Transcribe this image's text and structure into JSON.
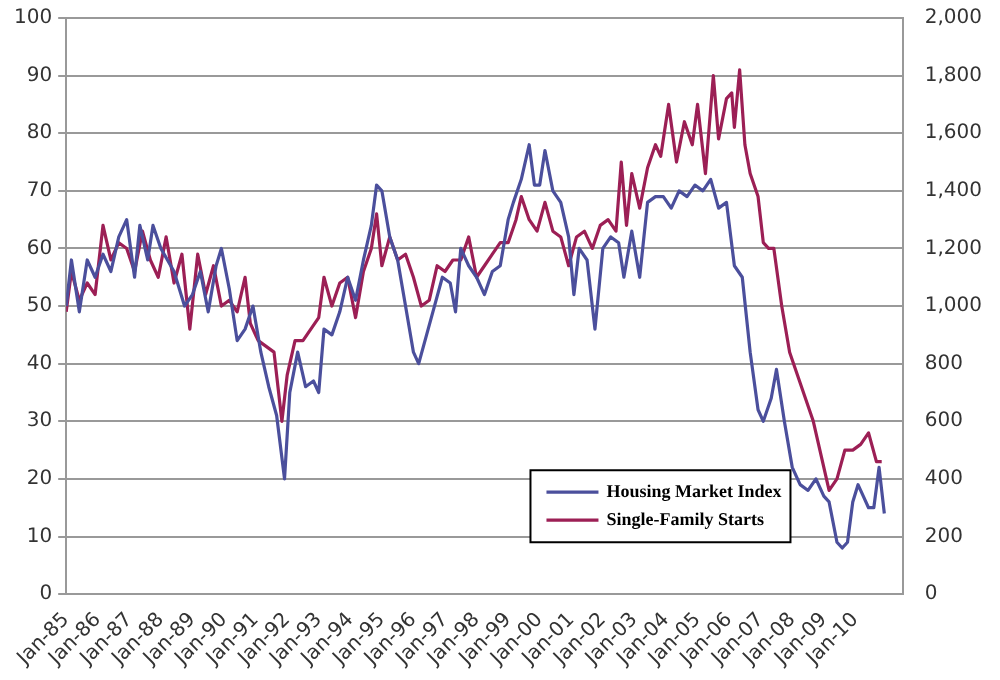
{
  "chart_data": {
    "type": "line",
    "x": [
      "1985-01",
      "1985-03",
      "1985-06",
      "1985-09",
      "1985-12",
      "1986-03",
      "1986-06",
      "1986-09",
      "1986-12",
      "1987-03",
      "1987-05",
      "1987-08",
      "1987-10",
      "1988-01",
      "1988-06",
      "1988-10",
      "1989-01",
      "1989-04",
      "1989-07",
      "1989-10",
      "1989-12",
      "1990-03",
      "1990-06",
      "1990-09",
      "1990-12",
      "1991-03",
      "1991-06",
      "1991-09",
      "1991-12",
      "1992-02",
      "1992-05",
      "1992-08",
      "1992-11",
      "1993-01",
      "1993-03",
      "1993-06",
      "1993-09",
      "1993-12",
      "1994-03",
      "1994-06",
      "1994-09",
      "1994-11",
      "1995-01",
      "1995-04",
      "1995-07",
      "1995-10",
      "1996-01",
      "1996-03",
      "1996-06",
      "1996-09",
      "1996-12",
      "1997-03",
      "1997-05",
      "1997-07",
      "1997-10",
      "1998-01",
      "1998-04",
      "1998-07",
      "1998-10",
      "1999-01",
      "1999-03",
      "1999-06",
      "1999-09",
      "1999-11",
      "2000-01",
      "2000-03",
      "2000-06",
      "2000-09",
      "2000-12",
      "2001-02",
      "2001-04",
      "2001-07",
      "2001-10",
      "2002-01",
      "2002-04",
      "2002-07",
      "2002-09",
      "2002-12",
      "2003-03",
      "2003-06",
      "2003-09",
      "2003-12",
      "2004-03",
      "2004-06",
      "2004-09",
      "2004-12",
      "2005-03",
      "2005-06",
      "2005-09",
      "2005-12",
      "2006-03",
      "2006-06",
      "2006-09",
      "2006-12",
      "2007-02",
      "2007-05",
      "2007-07",
      "2007-10",
      "2008-01",
      "2008-04",
      "2008-07",
      "2008-10",
      "2009-01",
      "2009-03",
      "2009-06",
      "2009-08",
      "2009-10",
      "2009-12",
      "2010-02",
      "2010-04",
      "2010-06",
      "2010-08",
      "2010-10",
      "2010-12"
    ],
    "series": [
      {
        "name": "Housing Market Index",
        "color": "#4b4f9c",
        "values": [
          50,
          58,
          49,
          58,
          55,
          59,
          56,
          62,
          65,
          55,
          64,
          58,
          64,
          60,
          56,
          50,
          52,
          56,
          49,
          57,
          60,
          53,
          44,
          46,
          50,
          42,
          36,
          31,
          20,
          35,
          42,
          36,
          37,
          35,
          46,
          45,
          49,
          55,
          51,
          58,
          64,
          71,
          70,
          62,
          58,
          50,
          42,
          40,
          45,
          50,
          55,
          54,
          49,
          60,
          57,
          55,
          52,
          56,
          57,
          65,
          68,
          72,
          78,
          71,
          71,
          77,
          70,
          68,
          62,
          52,
          60,
          58,
          46,
          60,
          62,
          61,
          55,
          63,
          55,
          68,
          69,
          69,
          67,
          70,
          69,
          71,
          70,
          72,
          67,
          68,
          57,
          55,
          42,
          32,
          30,
          34,
          39,
          30,
          22,
          19,
          18,
          20,
          17,
          16,
          9,
          8,
          9,
          16,
          19,
          17,
          15,
          15,
          22,
          14
        ]
      },
      {
        "name": "Single-Family Starts",
        "color": "#9c1f55",
        "axis": "y2",
        "x": [
          "1985-01",
          "1985-03",
          "1985-06",
          "1985-09",
          "1985-12",
          "1986-03",
          "1986-06",
          "1986-09",
          "1986-12",
          "1987-03",
          "1987-06",
          "1987-09",
          "1987-12",
          "1988-03",
          "1988-06",
          "1988-09",
          "1988-12",
          "1989-03",
          "1989-06",
          "1989-09",
          "1989-12",
          "1990-03",
          "1990-06",
          "1990-09",
          "1990-11",
          "1991-02",
          "1991-05",
          "1991-08",
          "1991-11",
          "1992-01",
          "1992-04",
          "1992-07",
          "1992-10",
          "1993-01",
          "1993-03",
          "1993-06",
          "1993-09",
          "1993-12",
          "1994-03",
          "1994-06",
          "1994-09",
          "1994-11",
          "1995-01",
          "1995-04",
          "1995-07",
          "1995-10",
          "1996-01",
          "1996-04",
          "1996-07",
          "1996-10",
          "1997-01",
          "1997-04",
          "1997-07",
          "1997-10",
          "1998-01",
          "1998-04",
          "1998-07",
          "1998-10",
          "1999-01",
          "1999-04",
          "1999-06",
          "1999-09",
          "1999-12",
          "2000-03",
          "2000-06",
          "2000-09",
          "2000-12",
          "2001-03",
          "2001-06",
          "2001-09",
          "2001-12",
          "2002-03",
          "2002-06",
          "2002-08",
          "2002-10",
          "2002-12",
          "2003-03",
          "2003-06",
          "2003-09",
          "2003-11",
          "2004-02",
          "2004-05",
          "2004-08",
          "2004-11",
          "2005-01",
          "2005-04",
          "2005-07",
          "2005-09",
          "2005-12",
          "2006-02",
          "2006-03",
          "2006-05",
          "2006-07",
          "2006-09",
          "2006-12",
          "2007-02",
          "2007-04",
          "2007-06",
          "2007-09",
          "2007-12",
          "2008-03",
          "2008-06",
          "2008-09",
          "2008-12",
          "2009-03",
          "2009-06",
          "2009-09",
          "2009-12",
          "2010-03",
          "2010-06",
          "2010-09",
          "2010-11"
        ],
        "values": [
          980,
          1120,
          1020,
          1080,
          1040,
          1280,
          1160,
          1220,
          1200,
          1120,
          1260,
          1160,
          1100,
          1240,
          1080,
          1180,
          920,
          1180,
          1040,
          1140,
          1000,
          1020,
          980,
          1100,
          940,
          880,
          860,
          840,
          600,
          760,
          880,
          880,
          920,
          960,
          1100,
          1000,
          1080,
          1100,
          960,
          1120,
          1200,
          1320,
          1140,
          1240,
          1160,
          1180,
          1100,
          1000,
          1020,
          1140,
          1120,
          1160,
          1160,
          1240,
          1100,
          1140,
          1180,
          1220,
          1220,
          1300,
          1380,
          1300,
          1260,
          1360,
          1260,
          1240,
          1140,
          1240,
          1260,
          1200,
          1280,
          1300,
          1260,
          1500,
          1280,
          1460,
          1340,
          1480,
          1560,
          1520,
          1700,
          1500,
          1640,
          1560,
          1700,
          1460,
          1800,
          1580,
          1720,
          1740,
          1620,
          1820,
          1560,
          1460,
          1380,
          1220,
          1200,
          1200,
          1000,
          840,
          760,
          680,
          600,
          480,
          360,
          400,
          500,
          500,
          520,
          560,
          460,
          460
        ]
      }
    ],
    "xlim": [
      "1985-01",
      "2011-07"
    ],
    "xticks": [
      {
        "value": "1985-01",
        "label": "Jan-85"
      },
      {
        "value": "1986-01",
        "label": "Jan-86"
      },
      {
        "value": "1987-01",
        "label": "Jan-87"
      },
      {
        "value": "1988-01",
        "label": "Jan-88"
      },
      {
        "value": "1989-01",
        "label": "Jan-89"
      },
      {
        "value": "1990-01",
        "label": "Jan-90"
      },
      {
        "value": "1991-01",
        "label": "Jan-91"
      },
      {
        "value": "1992-01",
        "label": "Jan-92"
      },
      {
        "value": "1993-01",
        "label": "Jan-93"
      },
      {
        "value": "1994-01",
        "label": "Jan-94"
      },
      {
        "value": "1995-01",
        "label": "Jan-95"
      },
      {
        "value": "1996-01",
        "label": "Jan-96"
      },
      {
        "value": "1997-01",
        "label": "Jan-97"
      },
      {
        "value": "1998-01",
        "label": "Jan-98"
      },
      {
        "value": "1999-01",
        "label": "Jan-99"
      },
      {
        "value": "2000-01",
        "label": "Jan-00"
      },
      {
        "value": "2001-01",
        "label": "Jan-01"
      },
      {
        "value": "2002-01",
        "label": "Jan-02"
      },
      {
        "value": "2003-01",
        "label": "Jan-03"
      },
      {
        "value": "2004-01",
        "label": "Jan-04"
      },
      {
        "value": "2005-01",
        "label": "Jan-05"
      },
      {
        "value": "2006-01",
        "label": "Jan-06"
      },
      {
        "value": "2007-01",
        "label": "Jan-07"
      },
      {
        "value": "2008-01",
        "label": "Jan-08"
      },
      {
        "value": "2009-01",
        "label": "Jan-09"
      },
      {
        "value": "2010-01",
        "label": "Jan-10"
      }
    ],
    "ylim": [
      0,
      100
    ],
    "yticks": [
      0,
      10,
      20,
      30,
      40,
      50,
      60,
      70,
      80,
      90,
      100
    ],
    "y2lim": [
      0,
      2000
    ],
    "y2ticks": [
      0,
      200,
      400,
      600,
      800,
      {
        "value": 1000,
        "label": "1,000"
      },
      {
        "value": 1200,
        "label": "1,200"
      },
      {
        "value": 1400,
        "label": "1,400"
      },
      {
        "value": 1600,
        "label": "1,600"
      },
      {
        "value": 1800,
        "label": "1,800"
      },
      {
        "value": 2000,
        "label": "2,000"
      }
    ],
    "grid": "y",
    "legend": "bottom right",
    "marker": "none",
    "line_style": "solid"
  }
}
